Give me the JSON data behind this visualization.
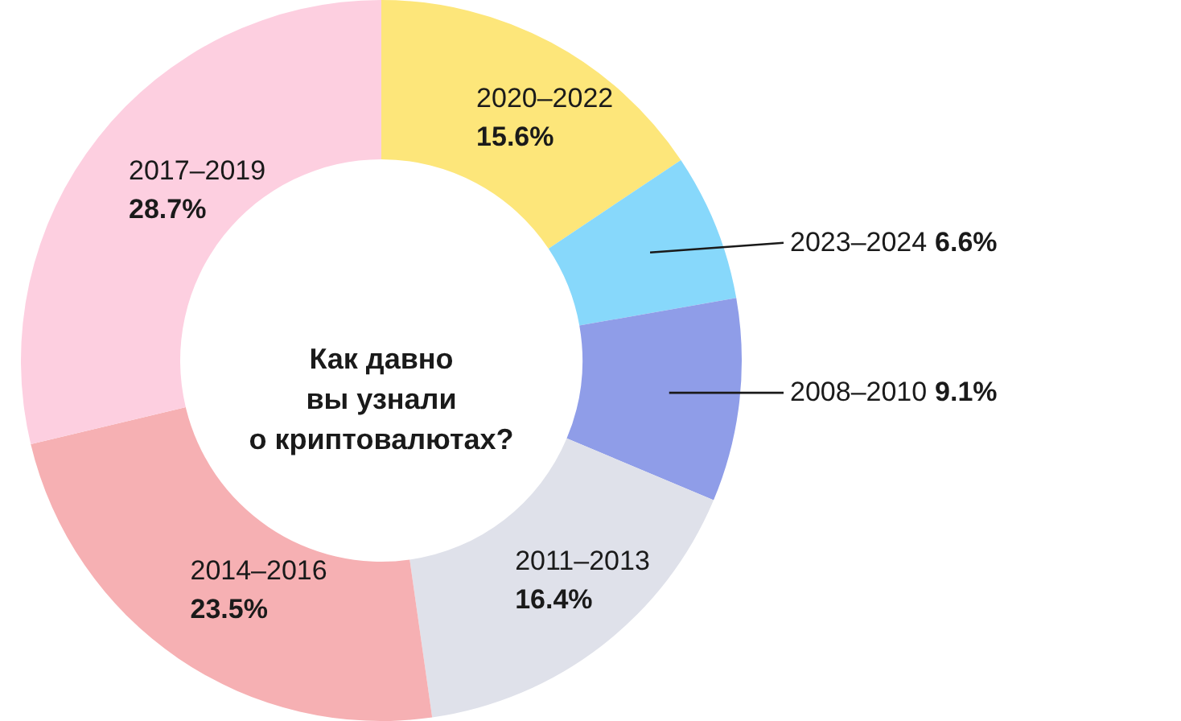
{
  "chart_data": {
    "type": "donut",
    "title": "Как давно вы узнали о криптовалютах?",
    "categories": [
      "2020–2022",
      "2023–2024",
      "2008–2010",
      "2011–2013",
      "2014–2016",
      "2017–2019"
    ],
    "values": [
      15.6,
      6.6,
      9.1,
      16.4,
      23.5,
      28.7
    ],
    "value_labels": [
      "15.6%",
      "6.6%",
      "9.1%",
      "16.4%",
      "23.5%",
      "28.7%"
    ],
    "colors": [
      "#fde67a",
      "#87d8fb",
      "#8f9de8",
      "#dfe1ea",
      "#f6b0b3",
      "#fdcfe0"
    ]
  }
}
